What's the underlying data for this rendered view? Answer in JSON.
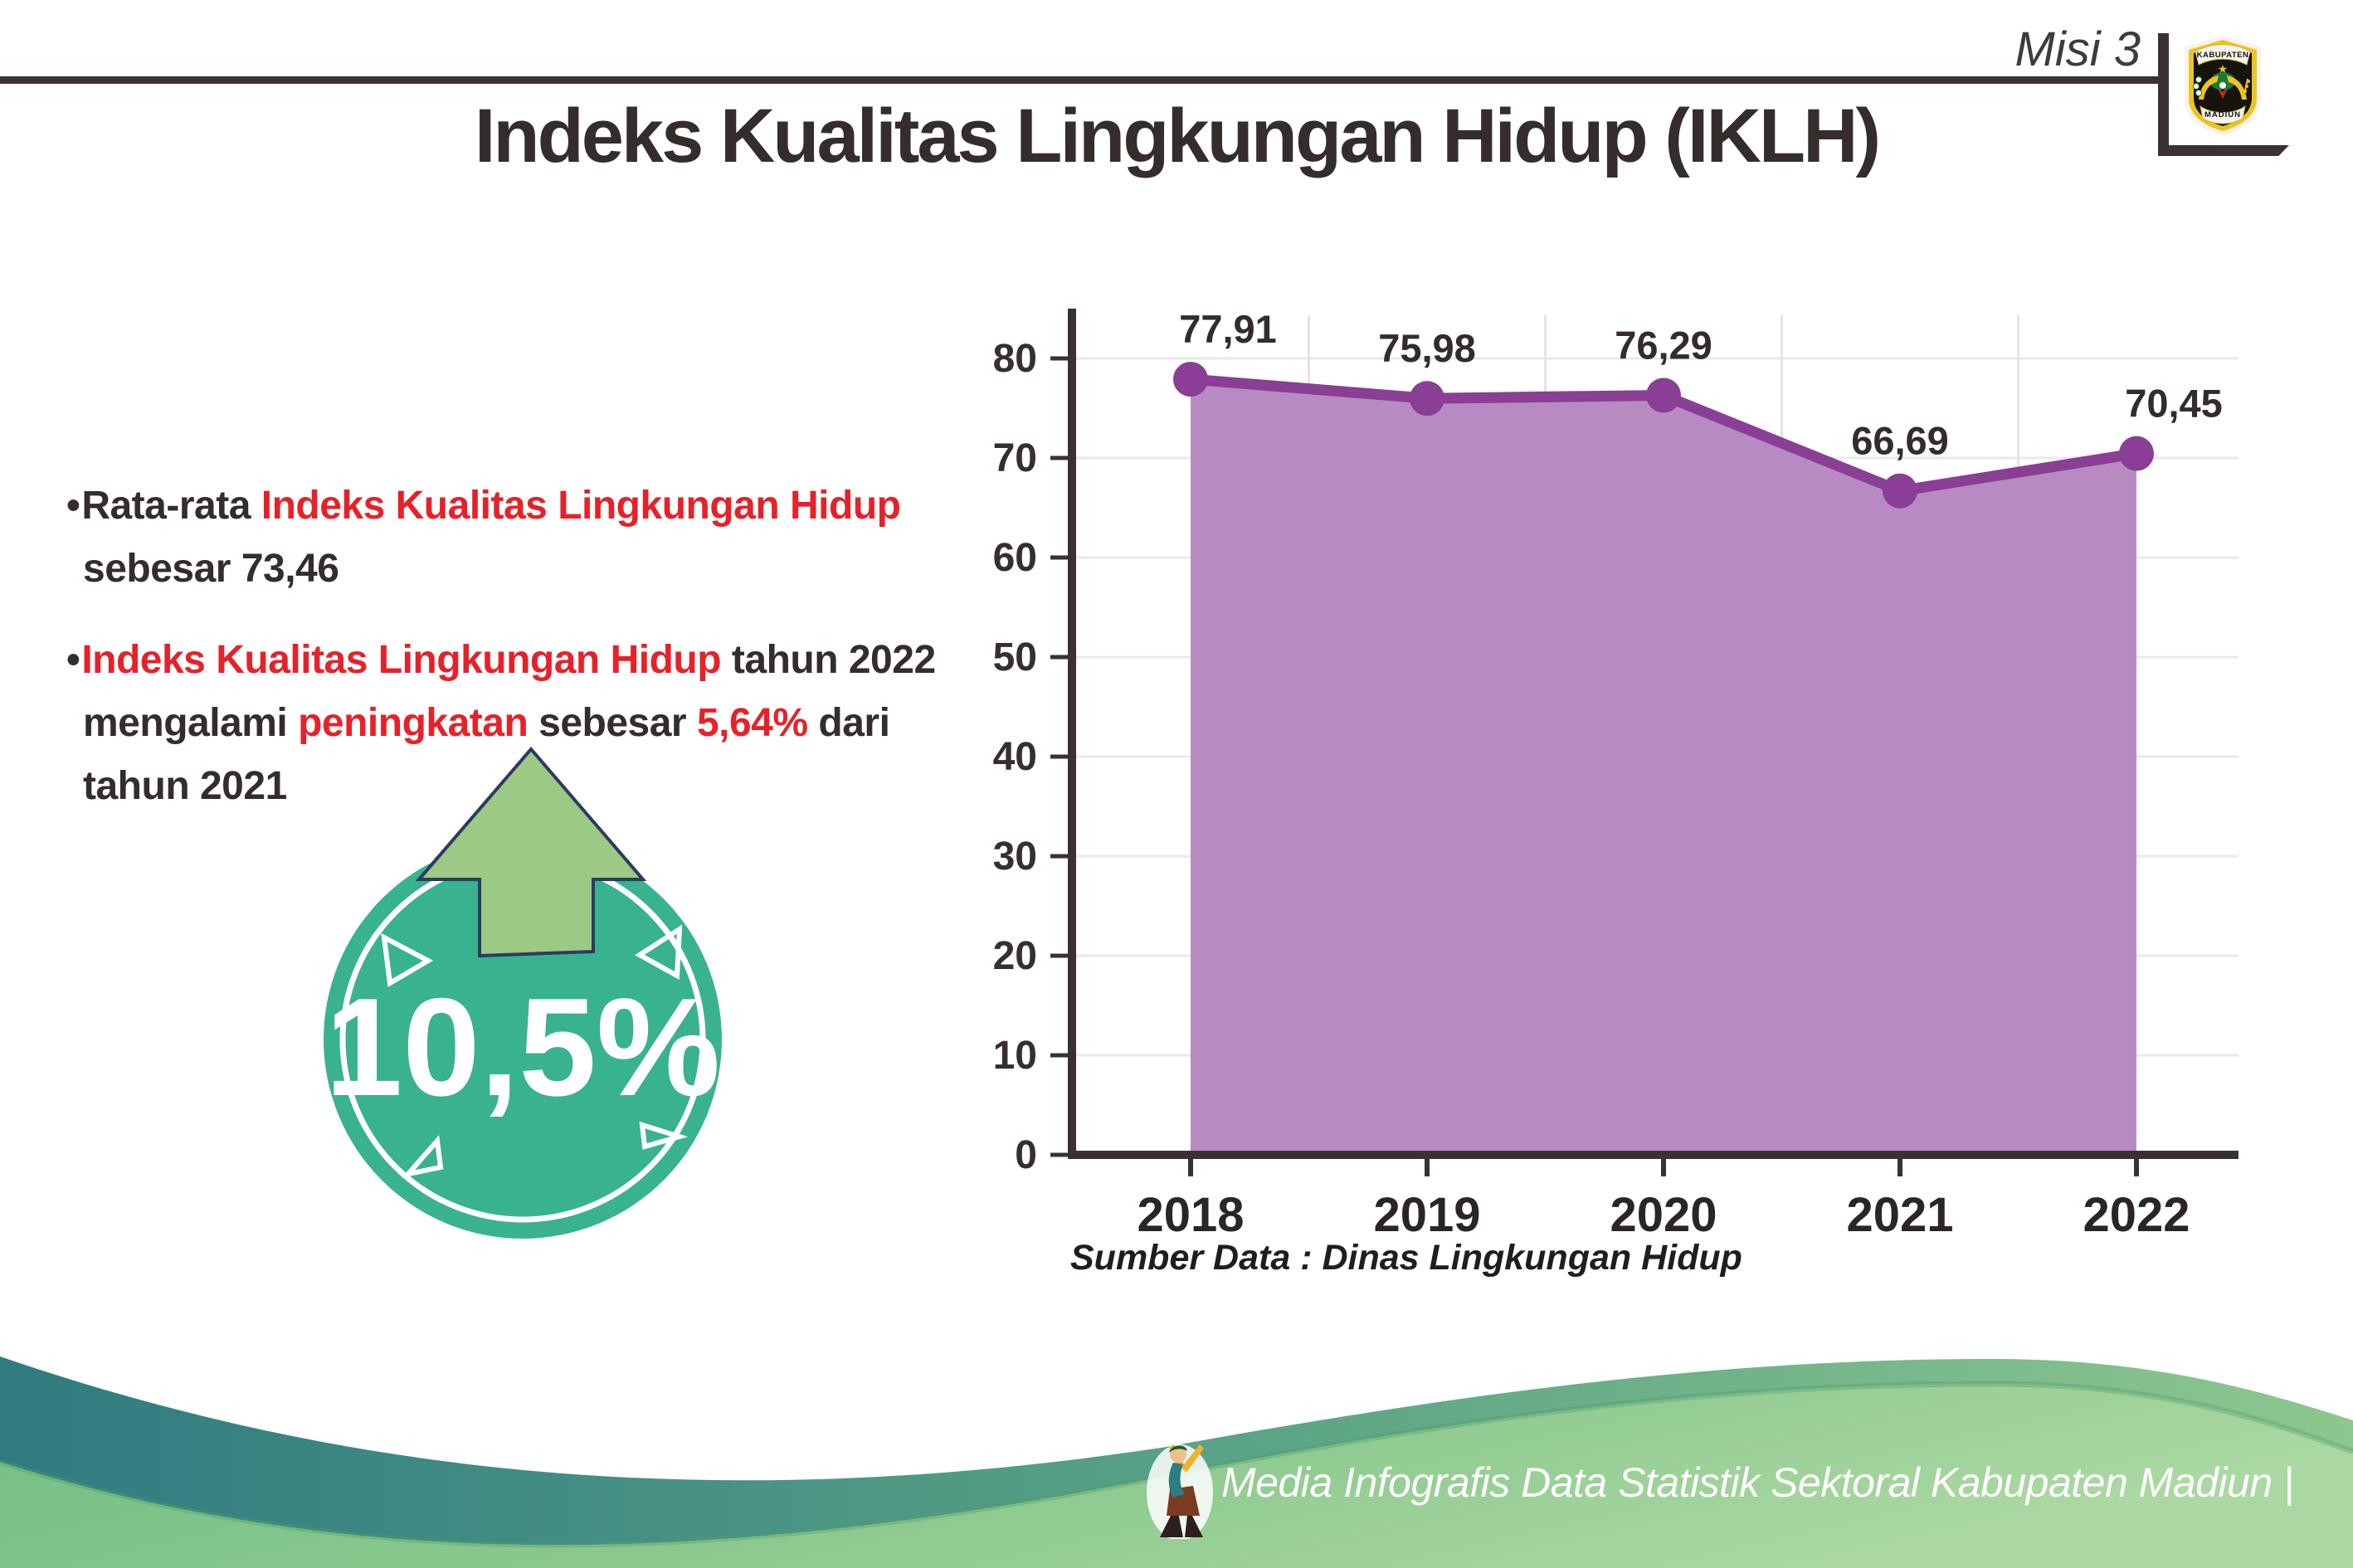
{
  "page": {
    "background": "#ffffff"
  },
  "header": {
    "misi_label": "Misi 3",
    "rule_color": "#3a3331",
    "logo": {
      "top_text": "KABUPATEN",
      "bottom_text": "MADIUN"
    }
  },
  "title": "Indeks Kualitas Lingkungan Hidup (IKLH)",
  "colors": {
    "red_accent": "#e62129",
    "dark_text": "#352d2b",
    "badge_teal": "#39b28f",
    "arrow_green": "#9cc983",
    "arrow_outline_navy": "#2d3a5e",
    "footer_teal": "#2f7b80",
    "footer_green": "#8cc98e"
  },
  "bullets": [
    {
      "lines": [
        [
          {
            "t": "Rata-rata ",
            "c": "dark"
          },
          {
            "t": "Indeks Kualitas Lingkungan Hidup",
            "c": "red"
          }
        ],
        [
          {
            "t": "sebesar 73,46",
            "c": "dark"
          }
        ]
      ]
    },
    {
      "lines": [
        [
          {
            "t": "Indeks Kualitas Lingkungan Hidup",
            "c": "red"
          },
          {
            "t": " tahun 2022",
            "c": "dark"
          }
        ],
        [
          {
            "t": "mengalami ",
            "c": "dark"
          },
          {
            "t": "peningkatan",
            "c": "red"
          },
          {
            "t": " sebesar ",
            "c": "dark"
          },
          {
            "t": "5,64%",
            "c": "red"
          },
          {
            "t": " dari",
            "c": "dark"
          }
        ],
        [
          {
            "t": "tahun 2021",
            "c": "dark"
          }
        ]
      ]
    }
  ],
  "badge": {
    "value": "10,5%",
    "circle_color": "#39b28f",
    "arrow_color": "#9cc983",
    "arrow_outline_color": "#2d3a5e"
  },
  "chart_data": {
    "type": "area",
    "categories": [
      "2018",
      "2019",
      "2020",
      "2021",
      "2022"
    ],
    "values": [
      77.91,
      75.98,
      76.29,
      66.69,
      70.45
    ],
    "value_labels": [
      "77,91",
      "75,98",
      "76,29",
      "66,69",
      "70,45"
    ],
    "title": "",
    "xlabel": "",
    "ylabel": "",
    "ylim": [
      0,
      85
    ],
    "ytick_step": 10,
    "grid": true,
    "legend": false,
    "line_color": "#8a3e95",
    "fill_color": "#b78bc1",
    "axis_color": "#3a3132",
    "label_color": "#332b2c",
    "grid_color": "#e9e9e9"
  },
  "source_label": "Sumber Data : Dinas Lingkungan Hidup",
  "footer": {
    "text": "Media Infografis Data Statistik Sektoral Kabupaten Madiun |",
    "mascot_icon": "dancer-mascot-icon"
  }
}
